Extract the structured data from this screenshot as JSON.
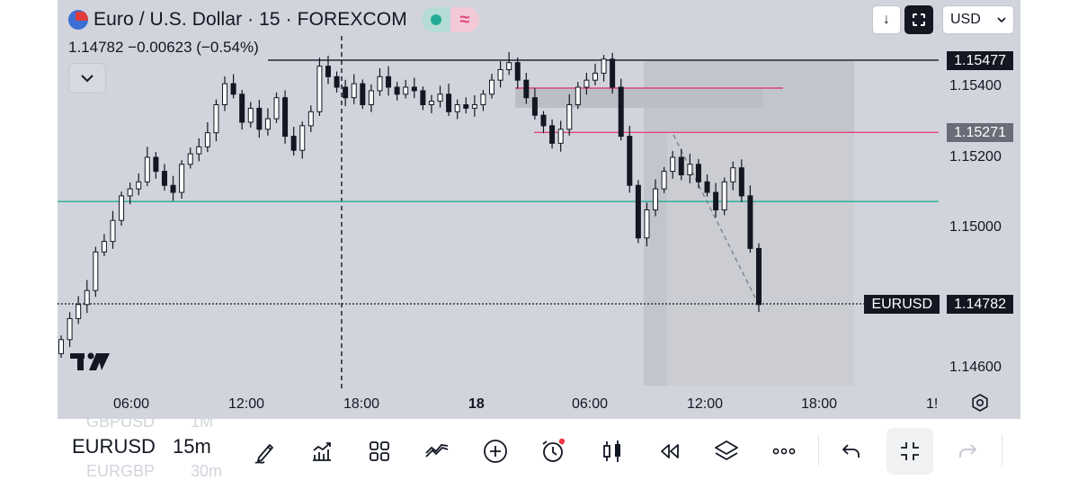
{
  "header": {
    "title": "Euro / U.S. Dollar · 15 · FOREXCOM",
    "ohlc": "1.14782  −0.00623 (−0.54%)",
    "status_icon": "dot-icon",
    "wave_icon": "≈",
    "currency": "USD",
    "arrow_down": "↓"
  },
  "price_axis": {
    "labels": [
      "1.15400",
      "1.15200",
      "1.15000",
      "1.14600"
    ],
    "tag_1": "1.15477",
    "tag_2": "1.15271",
    "symbol_tag": "EURUSD",
    "current_tag": "1.14782"
  },
  "time_axis": {
    "labels": [
      "06:00",
      "12:00",
      "18:00",
      "18",
      "06:00",
      "12:00",
      "18:00",
      "1!"
    ]
  },
  "toolbar": {
    "symbol": "EURUSD",
    "timeframe": "15m",
    "prev_symbol": "GBPUSD",
    "prev_timeframe": "1M",
    "next_symbol": "EURGBP",
    "next_timeframe": "30m",
    "tools": [
      "pen-icon",
      "indicators-icon",
      "grid-icon",
      "trend-icon",
      "plus-icon",
      "alarm-icon",
      "candles-icon",
      "replay-icon",
      "layers-icon",
      "more-icon",
      "undo-icon",
      "collapse-icon",
      "redo-icon"
    ]
  },
  "colors": {
    "chart_bg": "#d1d4dc",
    "teal_line": "#22ab94",
    "pink_line": "#e0457b",
    "tag_dark": "#131722"
  },
  "chart_data": {
    "type": "candlestick",
    "symbol": "EURUSD",
    "interval": "15",
    "ylim": [
      1.1455,
      1.1565
    ],
    "last": 1.14782,
    "levels": [
      1.15477,
      1.15271,
      1.15074
    ],
    "series_y": [
      1.1468,
      1.1474,
      1.1478,
      1.1482,
      1.1493,
      1.1496,
      1.1502,
      1.1509,
      1.1511,
      1.1513,
      1.152,
      1.1516,
      1.1512,
      1.151,
      1.1518,
      1.1521,
      1.1523,
      1.1527,
      1.1535,
      1.1541,
      1.1538,
      1.153,
      1.1534,
      1.1528,
      1.1531,
      1.1537,
      1.1526,
      1.1522,
      1.1529,
      1.1533,
      1.1546,
      1.1543,
      1.154,
      1.1537,
      1.1541,
      1.1535,
      1.1539,
      1.1543,
      1.154,
      1.1538,
      1.154,
      1.1539,
      1.1535,
      1.1536,
      1.1538,
      1.1533,
      1.1535,
      1.1534,
      1.1535,
      1.1538,
      1.1542,
      1.1545,
      1.1547,
      1.1542,
      1.1537,
      1.1532,
      1.1529,
      1.1524,
      1.1528,
      1.1535,
      1.154,
      1.1542,
      1.1544,
      1.1548,
      1.154,
      1.1526,
      1.1512,
      1.1497,
      1.1505,
      1.1511,
      1.1516,
      1.152,
      1.1515,
      1.1518,
      1.1513,
      1.151,
      1.1505,
      1.1513,
      1.1517,
      1.1509,
      1.1494,
      1.1478
    ]
  }
}
